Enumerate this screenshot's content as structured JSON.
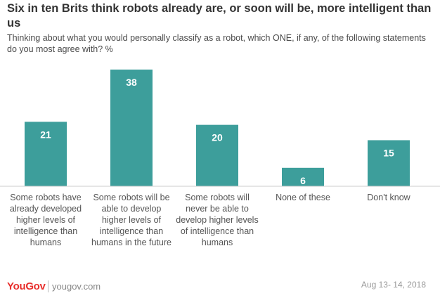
{
  "header": {
    "title": "Six in ten Brits think robots already are, or soon will be, more intelligent than us",
    "subtitle": "Thinking about what you would personally classify as a robot, which ONE, if any, of the following statements do you most agree with? %"
  },
  "chart_data": {
    "type": "bar",
    "categories": [
      "Some robots have already developed higher levels of intelligence than humans",
      "Some robots will be able to develop higher levels of intelligence than humans in the future",
      "Some robots will never be able to develop higher levels of intelligence than humans",
      "None of these",
      "Don't know"
    ],
    "values": [
      21,
      38,
      20,
      6,
      15
    ],
    "ylim": [
      0,
      38
    ],
    "bar_color": "#3d9e9b",
    "value_label_color": "#ffffff",
    "grid": false,
    "legend": "none"
  },
  "footer": {
    "brand": "YouGov",
    "site": "yougov.com",
    "date": "Aug 13- 14, 2018",
    "brand_color": "#e8302d"
  }
}
